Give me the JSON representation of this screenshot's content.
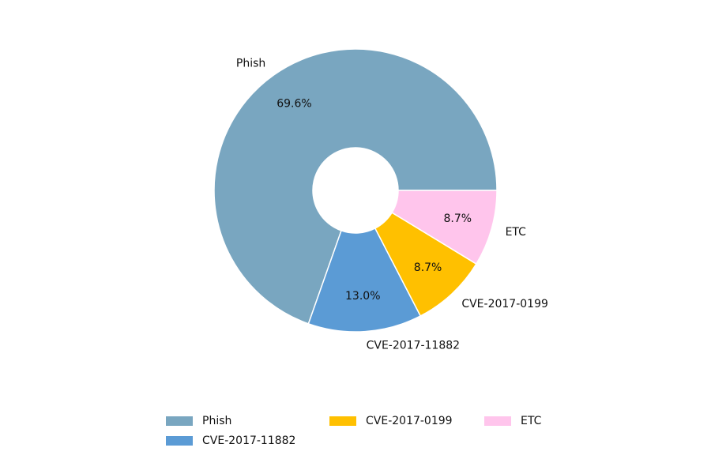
{
  "chart_data": {
    "type": "pie",
    "donut": true,
    "slices": [
      {
        "label": "Phish",
        "value": 69.6,
        "pct_label": "69.6%",
        "color": "#79a6c0"
      },
      {
        "label": "CVE-2017-11882",
        "value": 13.0,
        "pct_label": "13.0%",
        "color": "#5b9bd5"
      },
      {
        "label": "CVE-2017-0199",
        "value": 8.7,
        "pct_label": "8.7%",
        "color": "#ffc000"
      },
      {
        "label": "ETC",
        "value": 8.7,
        "pct_label": "8.7%",
        "color": "#ffc5ec"
      }
    ],
    "legend": {
      "placement": "bottom",
      "entries": [
        "Phish",
        "CVE-2017-11882",
        "CVE-2017-0199",
        "ETC"
      ]
    }
  }
}
